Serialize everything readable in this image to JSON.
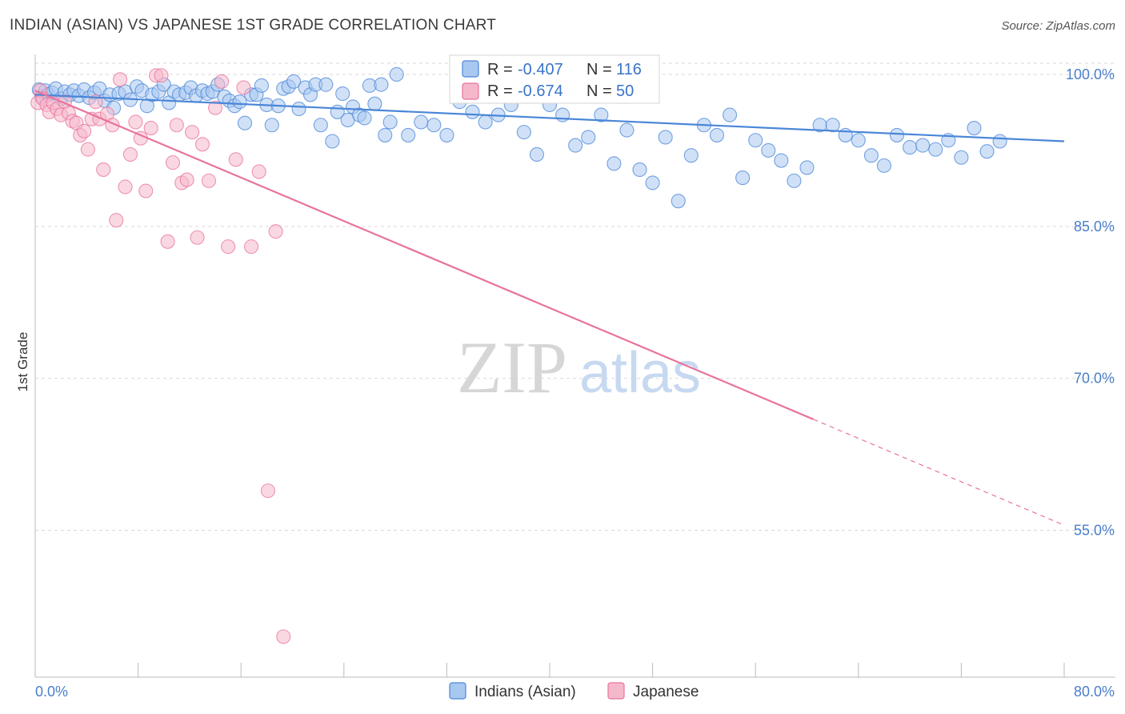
{
  "title": "INDIAN (ASIAN) VS JAPANESE 1ST GRADE CORRELATION CHART",
  "source": "Source: ZipAtlas.com",
  "watermark": {
    "zip": "ZIP",
    "atlas": "atlas"
  },
  "colors": {
    "blue": "#4a86d8",
    "blue_fill": "#a9c8f0",
    "pink": "#e8739c",
    "pink_fill": "#f5b8cb",
    "value_text": "#3a74c9",
    "grid": "#d9d9d9"
  },
  "stats": [
    {
      "r_label": "R =",
      "r_value": "-0.407",
      "n_label": "N =",
      "n_value": "116"
    },
    {
      "r_label": "R =",
      "r_value": "-0.674",
      "n_label": "N =",
      "n_value": "50"
    }
  ],
  "chart_data": {
    "type": "scatter",
    "title": "INDIAN (ASIAN) VS JAPANESE 1ST GRADE CORRELATION CHART",
    "xlabel": "",
    "ylabel": "1st Grade",
    "xlim": [
      0,
      80
    ],
    "ylim": [
      40.5,
      101.5
    ],
    "x_tick_labels": [
      "0.0%",
      "80.0%"
    ],
    "y_ticks": [
      100,
      85,
      70,
      55
    ],
    "y_tick_labels": [
      "100.0%",
      "85.0%",
      "70.0%",
      "55.0%"
    ],
    "legend": [
      "Indians (Asian)",
      "Japanese"
    ],
    "series": [
      {
        "name": "Indians (Asian)",
        "trend": {
          "x0": 0,
          "y0": 98.0,
          "x1": 80,
          "y1": 93.4,
          "dash_from": null
        },
        "points": [
          [
            0.3,
            98.5
          ],
          [
            0.5,
            97.8
          ],
          [
            0.8,
            98.4
          ],
          [
            1.0,
            98.0
          ],
          [
            1.3,
            98.2
          ],
          [
            1.6,
            98.6
          ],
          [
            2.0,
            97.6
          ],
          [
            2.3,
            98.3
          ],
          [
            2.7,
            98.0
          ],
          [
            3.0,
            98.4
          ],
          [
            3.4,
            97.9
          ],
          [
            3.8,
            98.5
          ],
          [
            4.2,
            97.7
          ],
          [
            4.6,
            98.2
          ],
          [
            5.0,
            98.6
          ],
          [
            5.4,
            97.4
          ],
          [
            5.8,
            98.0
          ],
          [
            6.1,
            96.7
          ],
          [
            6.5,
            98.1
          ],
          [
            7.0,
            98.3
          ],
          [
            7.4,
            97.5
          ],
          [
            7.9,
            98.8
          ],
          [
            8.3,
            98.4
          ],
          [
            8.7,
            96.9
          ],
          [
            9.1,
            98.0
          ],
          [
            9.6,
            98.3
          ],
          [
            10.0,
            99.0
          ],
          [
            10.4,
            97.2
          ],
          [
            10.8,
            98.3
          ],
          [
            11.2,
            98.0
          ],
          [
            11.7,
            98.2
          ],
          [
            12.1,
            98.7
          ],
          [
            12.5,
            97.9
          ],
          [
            13.0,
            98.4
          ],
          [
            13.4,
            98.1
          ],
          [
            13.8,
            98.3
          ],
          [
            14.2,
            99.0
          ],
          [
            14.7,
            97.8
          ],
          [
            15.1,
            97.4
          ],
          [
            15.5,
            96.9
          ],
          [
            15.9,
            97.3
          ],
          [
            16.3,
            95.2
          ],
          [
            16.8,
            98.0
          ],
          [
            17.2,
            98.0
          ],
          [
            17.6,
            98.9
          ],
          [
            18.0,
            97.0
          ],
          [
            18.4,
            95.0
          ],
          [
            18.9,
            96.9
          ],
          [
            19.3,
            98.6
          ],
          [
            19.7,
            98.8
          ],
          [
            20.1,
            99.3
          ],
          [
            20.5,
            96.6
          ],
          [
            21.0,
            98.7
          ],
          [
            21.4,
            98.0
          ],
          [
            21.8,
            99.0
          ],
          [
            22.2,
            95.0
          ],
          [
            22.6,
            99.0
          ],
          [
            23.1,
            93.4
          ],
          [
            23.5,
            96.3
          ],
          [
            23.9,
            98.1
          ],
          [
            24.3,
            95.5
          ],
          [
            24.7,
            96.8
          ],
          [
            25.2,
            96.0
          ],
          [
            25.6,
            95.7
          ],
          [
            26.0,
            98.9
          ],
          [
            26.4,
            97.1
          ],
          [
            26.9,
            99.0
          ],
          [
            27.2,
            94.0
          ],
          [
            27.6,
            95.3
          ],
          [
            28.1,
            100.0
          ],
          [
            29.0,
            94.0
          ],
          [
            30.0,
            95.3
          ],
          [
            31.0,
            95.0
          ],
          [
            32.0,
            94.0
          ],
          [
            33.0,
            97.3
          ],
          [
            34.0,
            96.3
          ],
          [
            35.0,
            95.3
          ],
          [
            36.0,
            96.0
          ],
          [
            37.0,
            97.0
          ],
          [
            38.0,
            94.3
          ],
          [
            39.0,
            92.1
          ],
          [
            40.0,
            97.0
          ],
          [
            41.0,
            96.0
          ],
          [
            42.0,
            93.0
          ],
          [
            43.0,
            93.8
          ],
          [
            44.0,
            96.0
          ],
          [
            45.0,
            91.2
          ],
          [
            46.0,
            94.5
          ],
          [
            47.0,
            90.6
          ],
          [
            48.0,
            89.3
          ],
          [
            49.0,
            93.8
          ],
          [
            50.0,
            87.5
          ],
          [
            51.0,
            92.0
          ],
          [
            52.0,
            95.0
          ],
          [
            53.0,
            94.0
          ],
          [
            54.0,
            96.0
          ],
          [
            55.0,
            89.8
          ],
          [
            56.0,
            93.5
          ],
          [
            57.0,
            92.5
          ],
          [
            58.0,
            91.5
          ],
          [
            59.0,
            89.5
          ],
          [
            60.0,
            90.8
          ],
          [
            61.0,
            95.0
          ],
          [
            62.0,
            95.0
          ],
          [
            63.0,
            94.0
          ],
          [
            64.0,
            93.5
          ],
          [
            65.0,
            92.0
          ],
          [
            66.0,
            91.0
          ],
          [
            67.0,
            94.0
          ],
          [
            68.0,
            92.8
          ],
          [
            69.0,
            93.0
          ],
          [
            70.0,
            92.6
          ],
          [
            71.0,
            93.5
          ],
          [
            72.0,
            91.8
          ],
          [
            73.0,
            94.7
          ],
          [
            74.0,
            92.4
          ],
          [
            75.0,
            93.4
          ]
        ]
      },
      {
        "name": "Japanese",
        "trend": {
          "x0": 0,
          "y0": 98.4,
          "x1": 80,
          "y1": 55.5,
          "dash_from": 60.5
        },
        "points": [
          [
            0.2,
            97.2
          ],
          [
            0.4,
            98.4
          ],
          [
            0.6,
            97.6
          ],
          [
            0.9,
            97.0
          ],
          [
            1.1,
            96.3
          ],
          [
            1.4,
            97.2
          ],
          [
            1.7,
            96.6
          ],
          [
            2.0,
            96.0
          ],
          [
            2.3,
            97.3
          ],
          [
            2.6,
            96.2
          ],
          [
            2.9,
            95.4
          ],
          [
            3.2,
            95.2
          ],
          [
            3.5,
            94.0
          ],
          [
            3.8,
            94.4
          ],
          [
            4.1,
            92.6
          ],
          [
            4.4,
            95.6
          ],
          [
            4.7,
            97.3
          ],
          [
            5.0,
            95.6
          ],
          [
            5.3,
            90.6
          ],
          [
            5.6,
            96.1
          ],
          [
            6.0,
            95.0
          ],
          [
            6.3,
            85.6
          ],
          [
            6.6,
            99.5
          ],
          [
            7.0,
            88.9
          ],
          [
            7.4,
            92.1
          ],
          [
            7.8,
            95.3
          ],
          [
            8.2,
            93.7
          ],
          [
            8.6,
            88.5
          ],
          [
            9.0,
            94.7
          ],
          [
            9.4,
            99.9
          ],
          [
            9.8,
            99.9
          ],
          [
            10.3,
            83.5
          ],
          [
            10.7,
            91.3
          ],
          [
            11.0,
            95.0
          ],
          [
            11.4,
            89.3
          ],
          [
            11.8,
            89.6
          ],
          [
            12.2,
            94.3
          ],
          [
            12.6,
            83.9
          ],
          [
            13.0,
            93.1
          ],
          [
            13.5,
            89.5
          ],
          [
            14.0,
            96.7
          ],
          [
            14.5,
            99.3
          ],
          [
            15.0,
            83.0
          ],
          [
            15.6,
            91.6
          ],
          [
            16.2,
            98.7
          ],
          [
            16.8,
            83.0
          ],
          [
            17.4,
            90.4
          ],
          [
            18.1,
            58.9
          ],
          [
            18.7,
            84.5
          ],
          [
            19.3,
            44.5
          ]
        ]
      }
    ]
  }
}
